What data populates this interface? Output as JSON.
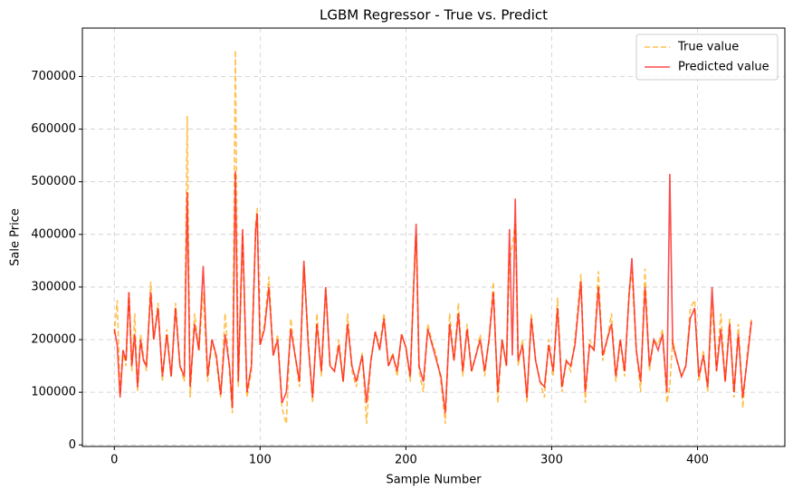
{
  "chart_data": {
    "type": "line",
    "title": "LGBM Regressor - True vs. Predict",
    "x_label": "Sample Number",
    "y_label": "Sale Price",
    "x": [
      0,
      2,
      4,
      6,
      8,
      10,
      12,
      14,
      16,
      18,
      20,
      22,
      25,
      27,
      30,
      33,
      36,
      39,
      42,
      45,
      48,
      50,
      52,
      55,
      58,
      61,
      64,
      67,
      70,
      73,
      76,
      79,
      81,
      83,
      85,
      88,
      91,
      94,
      97,
      98,
      100,
      103,
      106,
      109,
      112,
      115,
      118,
      121,
      124,
      127,
      130,
      133,
      136,
      139,
      142,
      145,
      148,
      151,
      154,
      157,
      160,
      163,
      166,
      170,
      173,
      176,
      179,
      182,
      185,
      188,
      191,
      194,
      197,
      200,
      203,
      205,
      207,
      209,
      212,
      215,
      218,
      221,
      224,
      227,
      230,
      233,
      236,
      239,
      242,
      245,
      248,
      251,
      254,
      257,
      260,
      263,
      266,
      269,
      271,
      273,
      275,
      277,
      280,
      283,
      286,
      289,
      292,
      295,
      298,
      301,
      304,
      307,
      310,
      313,
      316,
      320,
      323,
      326,
      329,
      332,
      335,
      338,
      341,
      344,
      347,
      350,
      353,
      355,
      358,
      361,
      364,
      367,
      370,
      373,
      376,
      379,
      381,
      383,
      386,
      389,
      392,
      395,
      398,
      401,
      404,
      407,
      410,
      413,
      416,
      419,
      422,
      425,
      428,
      431,
      434,
      437
    ],
    "series": [
      {
        "name": "True value",
        "color": "#ffa500",
        "dashed": true,
        "values": [
          210000,
          275000,
          95000,
          180000,
          150000,
          290000,
          140000,
          250000,
          100000,
          210000,
          170000,
          140000,
          310000,
          200000,
          270000,
          120000,
          220000,
          130000,
          270000,
          150000,
          120000,
          625000,
          90000,
          250000,
          180000,
          290000,
          120000,
          200000,
          160000,
          90000,
          250000,
          140000,
          60000,
          750000,
          110000,
          400000,
          90000,
          140000,
          420000,
          450000,
          190000,
          230000,
          320000,
          170000,
          210000,
          70000,
          40000,
          240000,
          170000,
          110000,
          340000,
          200000,
          80000,
          250000,
          130000,
          295000,
          150000,
          140000,
          200000,
          120000,
          250000,
          140000,
          110000,
          175000,
          40000,
          160000,
          215000,
          185000,
          250000,
          150000,
          175000,
          130000,
          210000,
          185000,
          120000,
          290000,
          400000,
          140000,
          100000,
          230000,
          195000,
          170000,
          120000,
          40000,
          250000,
          160000,
          270000,
          130000,
          230000,
          140000,
          170000,
          210000,
          130000,
          200000,
          310000,
          80000,
          200000,
          150000,
          350000,
          380000,
          420000,
          150000,
          200000,
          80000,
          250000,
          160000,
          120000,
          90000,
          200000,
          130000,
          280000,
          100000,
          160000,
          140000,
          200000,
          325000,
          80000,
          200000,
          180000,
          330000,
          160000,
          200000,
          250000,
          120000,
          200000,
          130000,
          290000,
          330000,
          180000,
          100000,
          335000,
          140000,
          200000,
          190000,
          220000,
          80000,
          110000,
          200000,
          160000,
          130000,
          150000,
          260000,
          275000,
          120000,
          180000,
          100000,
          270000,
          140000,
          250000,
          120000,
          240000,
          90000,
          230000,
          70000,
          170000,
          240000
        ]
      },
      {
        "name": "Predicted value",
        "color": "#ff0000",
        "dashed": false,
        "values": [
          220000,
          190000,
          90000,
          180000,
          160000,
          290000,
          150000,
          210000,
          110000,
          200000,
          160000,
          150000,
          290000,
          200000,
          260000,
          130000,
          210000,
          130000,
          260000,
          150000,
          130000,
          480000,
          110000,
          230000,
          180000,
          340000,
          130000,
          200000,
          170000,
          95000,
          210000,
          150000,
          70000,
          520000,
          120000,
          410000,
          100000,
          150000,
          410000,
          440000,
          190000,
          220000,
          300000,
          170000,
          200000,
          80000,
          100000,
          220000,
          170000,
          120000,
          350000,
          190000,
          90000,
          230000,
          140000,
          300000,
          150000,
          140000,
          190000,
          120000,
          230000,
          150000,
          120000,
          170000,
          80000,
          160000,
          215000,
          180000,
          240000,
          150000,
          170000,
          140000,
          210000,
          185000,
          130000,
          280000,
          420000,
          150000,
          120000,
          220000,
          190000,
          160000,
          130000,
          60000,
          230000,
          160000,
          250000,
          140000,
          220000,
          140000,
          170000,
          200000,
          140000,
          200000,
          290000,
          100000,
          200000,
          150000,
          410000,
          170000,
          468000,
          160000,
          190000,
          90000,
          240000,
          160000,
          120000,
          110000,
          190000,
          140000,
          260000,
          110000,
          160000,
          150000,
          190000,
          310000,
          100000,
          190000,
          180000,
          300000,
          170000,
          200000,
          230000,
          130000,
          200000,
          140000,
          280000,
          355000,
          180000,
          120000,
          300000,
          150000,
          200000,
          180000,
          210000,
          100000,
          515000,
          190000,
          160000,
          130000,
          150000,
          240000,
          260000,
          130000,
          170000,
          110000,
          300000,
          140000,
          220000,
          120000,
          230000,
          100000,
          210000,
          90000,
          160000,
          235000
        ]
      }
    ],
    "xlim": [
      -21.9,
      459.9
    ],
    "ylim": [
      -3000,
      792000
    ],
    "xticks": [
      0,
      100,
      200,
      300,
      400
    ],
    "yticks": [
      0,
      100000,
      200000,
      300000,
      400000,
      500000,
      600000,
      700000
    ],
    "grid": true,
    "legend": "upper right"
  }
}
